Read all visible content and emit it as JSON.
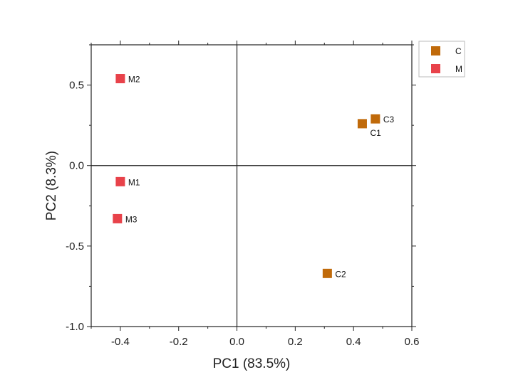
{
  "chart_data": {
    "type": "scatter",
    "title": "",
    "xlabel": "PC1 (83.5%)",
    "ylabel": "PC2 (8.3%)",
    "xlim": [
      -0.5,
      0.6
    ],
    "ylim": [
      -1.0,
      0.75
    ],
    "xticks": [
      -0.4,
      -0.2,
      0.0,
      0.2,
      0.4,
      0.6
    ],
    "xtick_labels": [
      "-0.4",
      "-0.2",
      "0.0",
      "0.2",
      "0.4",
      "0.6"
    ],
    "yticks": [
      -1.0,
      -0.5,
      0.0,
      0.5
    ],
    "ytick_labels": [
      "-1.0",
      "-0.5",
      "0.0",
      "0.5"
    ],
    "grid": false,
    "zero_lines": true,
    "legend_position": "outside top-right",
    "series": [
      {
        "name": "C",
        "color": "#c06a0a",
        "points": [
          {
            "label": "C1",
            "x": 0.43,
            "y": 0.26
          },
          {
            "label": "C2",
            "x": 0.31,
            "y": -0.67
          },
          {
            "label": "C3",
            "x": 0.475,
            "y": 0.29
          }
        ]
      },
      {
        "name": "M",
        "color": "#e8424a",
        "points": [
          {
            "label": "M1",
            "x": -0.4,
            "y": -0.1
          },
          {
            "label": "M2",
            "x": -0.4,
            "y": 0.54
          },
          {
            "label": "M3",
            "x": -0.41,
            "y": -0.33
          }
        ]
      }
    ]
  }
}
